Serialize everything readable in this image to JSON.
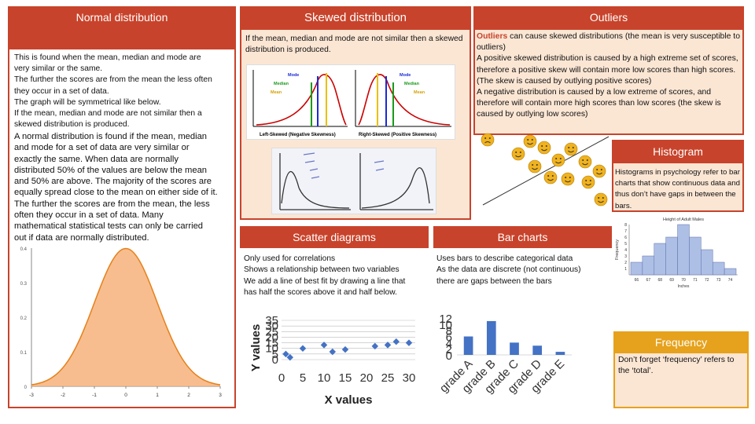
{
  "normal": {
    "title": "Normal distribution",
    "lines_small": [
      "This is found when the mean, median and mode are",
      "very similar or the same.",
      "The further the scores are from the mean the less often",
      "they occur in a set of data.",
      "The graph will be symmetrical like below.",
      "If the mean, median and mode are not similar then a",
      "skewed distribution is produced."
    ],
    "lines_large": [
      "A normal distribution is found if the mean, median",
      "and mode for a set of data are very similar or",
      "exactly the same. When data are normally",
      "distributed 50% of the values are below the mean",
      "and 50% are above. The majority of the scores are",
      "equally spread close to the mean on either side of it.",
      "The further the scores are from the mean, the less",
      "often they occur in a set of data. Many",
      "mathematical statistical tests can only be carried",
      "out if data are normally distributed."
    ],
    "chart_y_ticks": [
      "0.4",
      "0.3",
      "0.2",
      "0.1",
      "0"
    ],
    "chart_x_ticks": [
      "-3",
      "-2",
      "-1",
      "0",
      "1",
      "2",
      "3"
    ]
  },
  "skewed": {
    "title": "Skewed distribution",
    "text": "If the mean, median and mode are not similar then a skewed distribution is produced.",
    "left_labels": [
      "Mode",
      "Median",
      "Mean"
    ],
    "right_labels": [
      "Mode",
      "Median",
      "Mean"
    ],
    "left_caption": "Left-Skewed (Negative Skewness)",
    "right_caption": "Right-Skewed (Positive Skewness)"
  },
  "outliers": {
    "title": "Outliers",
    "highlight": "Outliers",
    "text_rest": " can cause skewed distributions (the mean is very susceptible to outliers)\nA positive skewed distribution is caused by a high extreme set of scores, therefore a positive skew will contain more low scores than high scores. (The skew is caused by outlying positive scores)\nA negative distribution is caused by a low extreme of scores, and therefore will contain more high scores than low scores (the skew is caused by outlying low scores)"
  },
  "histogram": {
    "title": "Histogram",
    "text": "Histograms in psychology refer to bar charts that show continuous data and thus don’t have gaps in between the bars.",
    "chart_title": "Height of Adult Males",
    "ylabel": "Frequency",
    "xlabel": "Inches",
    "x_ticks": [
      "66",
      "67",
      "68",
      "69",
      "70",
      "71",
      "72",
      "73",
      "74"
    ],
    "y_ticks": [
      "8",
      "7",
      "6",
      "5",
      "4",
      "3",
      "2",
      "1"
    ]
  },
  "scatter": {
    "title": "Scatter diagrams",
    "text": "Only used for correlations\nShows a relationship between two variables\nWe add a line of best fit by drawing a line that has half the scores above it and half below."
  },
  "bar": {
    "title": "Bar charts",
    "text": "Uses bars to describe categorical data\nAs the data are discrete (not continuous) there are gaps between the bars"
  },
  "frequency": {
    "title": "Frequency",
    "text": "Don’t forget ‘frequency’ refers to the ‘total’."
  },
  "chart_data": [
    {
      "type": "line",
      "x": [
        -3,
        -2.5,
        -2,
        -1.5,
        -1,
        -0.5,
        0,
        0.5,
        1,
        1.5,
        2,
        2.5,
        3
      ],
      "y": [
        0.004,
        0.018,
        0.054,
        0.13,
        0.242,
        0.352,
        0.399,
        0.352,
        0.242,
        0.13,
        0.054,
        0.018,
        0.004
      ],
      "ylim": [
        0,
        0.4
      ],
      "xlim": [
        -3,
        3
      ]
    },
    {
      "type": "scatter",
      "x": [
        1,
        2,
        5,
        10,
        12,
        15,
        22,
        25,
        30,
        27
      ],
      "y": [
        5,
        2,
        10,
        13,
        7,
        9,
        12,
        13,
        15,
        16
      ],
      "xlabel": "X values",
      "ylabel": "Y values",
      "x_ticks": [
        "0",
        "5",
        "10",
        "15",
        "20",
        "25",
        "30"
      ],
      "y_ticks": [
        "35",
        "30",
        "25",
        "20",
        "15",
        "10",
        "5",
        "0"
      ],
      "ylim": [
        0,
        35
      ],
      "xlim": [
        0,
        30
      ]
    },
    {
      "type": "bar",
      "categories": [
        "grade A",
        "grade B",
        "grade C",
        "grade D",
        "grade E"
      ],
      "values": [
        6,
        11,
        4,
        3,
        1
      ],
      "y_ticks": [
        "12",
        "10",
        "8",
        "6",
        "4",
        "2",
        "0"
      ],
      "ylim": [
        0,
        12
      ],
      "color": "#4472c4"
    },
    {
      "type": "bar",
      "categories": [
        "66",
        "67",
        "68",
        "69",
        "70",
        "71",
        "72",
        "73",
        "74"
      ],
      "values": [
        2,
        3,
        5,
        6,
        8,
        6,
        4,
        2,
        1
      ],
      "ylim": [
        0,
        8
      ],
      "color": "#aebfe6"
    }
  ]
}
